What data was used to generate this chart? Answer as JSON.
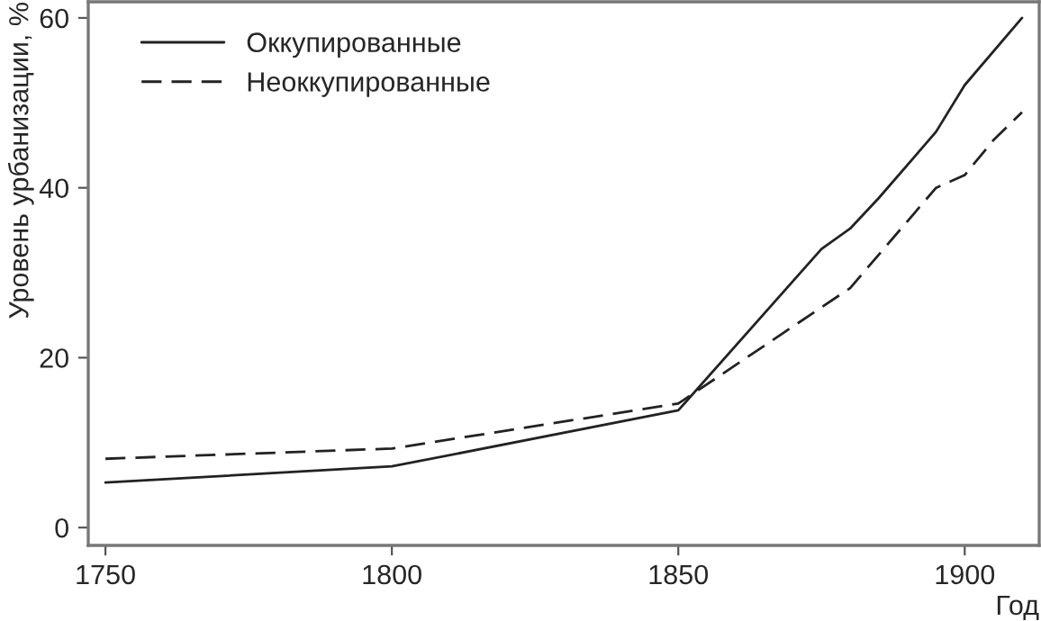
{
  "chart_data": {
    "type": "line",
    "xlabel": "Год",
    "ylabel": "Уровень урбанизации, %",
    "xlim": [
      1747,
      1913
    ],
    "ylim": [
      -2.1,
      61.9
    ],
    "xticks": [
      1750,
      1800,
      1850,
      1900
    ],
    "yticks": [
      0,
      20,
      40,
      60
    ],
    "grid": false,
    "legend": "top left",
    "marker": "none",
    "series": [
      {
        "name": "Оккупированные",
        "color": "#222222",
        "line_style": "solid",
        "x": [
          1750,
          1800,
          1850,
          1875,
          1880,
          1885,
          1895,
          1900,
          1910
        ],
        "values": [
          5.3,
          7.2,
          13.8,
          32.8,
          35.2,
          38.8,
          46.6,
          52.1,
          60
        ]
      },
      {
        "name": "Неоккупированные",
        "color": "#222222",
        "line_style": "dashed",
        "x": [
          1750,
          1800,
          1850,
          1880,
          1895,
          1900,
          1905,
          1910
        ],
        "values": [
          8.1,
          9.3,
          14.6,
          28.2,
          40.0,
          41.5,
          45.6,
          48.9
        ]
      }
    ]
  }
}
